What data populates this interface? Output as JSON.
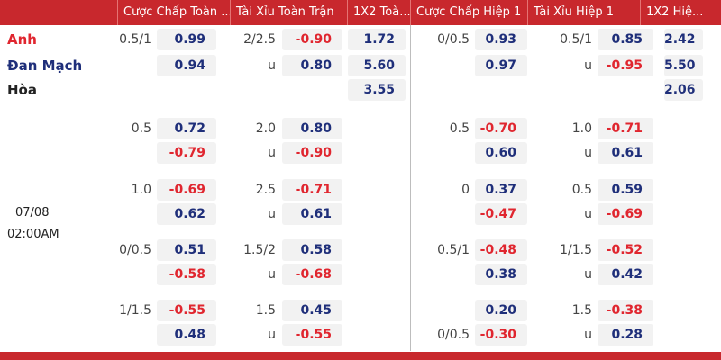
{
  "header": {
    "columns": [
      "Cược Chấp Toàn ...",
      "Tài Xỉu Toàn Trận",
      "1X2 Toà...",
      "Cược Chấp Hiệp 1",
      "Tài Xỉu Hiệp 1",
      "1X2 Hiệ..."
    ]
  },
  "match": {
    "teams": [
      "Anh",
      "Đan Mạch",
      "Hòa"
    ],
    "date": "07/08",
    "time": "02:00AM"
  },
  "rows": [
    {
      "ft_hcap_line": "0.5/1",
      "ft_hcap_odds": "0.99",
      "ft_ou_line": "2/2.5",
      "ft_ou_odds": "-0.90",
      "ft_1x2": "1.72",
      "h_hcap_line": "0/0.5",
      "h_hcap_odds": "0.93",
      "h_ou_line": "0.5/1",
      "h_ou_odds": "0.85",
      "h_1x2": "2.42"
    },
    {
      "ft_hcap_odds": "0.94",
      "ft_ou_line": "u",
      "ft_ou_odds": "0.80",
      "ft_1x2": "5.60",
      "h_hcap_odds": "0.97",
      "h_ou_line": "u",
      "h_ou_odds": "-0.95",
      "h_1x2": "5.50"
    },
    {
      "ft_1x2": "3.55",
      "h_1x2": "2.06"
    },
    {
      "ft_hcap_line": "0.5",
      "ft_hcap_odds": "0.72",
      "ft_ou_line": "2.0",
      "ft_ou_odds": "0.80",
      "h_hcap_line": "0.5",
      "h_hcap_odds": "-0.70",
      "h_ou_line": "1.0",
      "h_ou_odds": "-0.71"
    },
    {
      "ft_hcap_odds": "-0.79",
      "ft_ou_line": "u",
      "ft_ou_odds": "-0.90",
      "h_hcap_odds": "0.60",
      "h_ou_line": "u",
      "h_ou_odds": "0.61"
    },
    {
      "ft_hcap_line": "1.0",
      "ft_hcap_odds": "-0.69",
      "ft_ou_line": "2.5",
      "ft_ou_odds": "-0.71",
      "h_hcap_line": "0",
      "h_hcap_odds": "0.37",
      "h_ou_line": "0.5",
      "h_ou_odds": "0.59"
    },
    {
      "ft_hcap_odds": "0.62",
      "ft_ou_line": "u",
      "ft_ou_odds": "0.61",
      "h_hcap_odds": "-0.47",
      "h_ou_line": "u",
      "h_ou_odds": "-0.69"
    },
    {
      "ft_hcap_line": "0/0.5",
      "ft_hcap_odds": "0.51",
      "ft_ou_line": "1.5/2",
      "ft_ou_odds": "0.58",
      "h_hcap_line": "0.5/1",
      "h_hcap_odds": "-0.48",
      "h_ou_line": "1/1.5",
      "h_ou_odds": "-0.52"
    },
    {
      "ft_hcap_odds": "-0.58",
      "ft_ou_line": "u",
      "ft_ou_odds": "-0.68",
      "h_hcap_odds": "0.38",
      "h_ou_line": "u",
      "h_ou_odds": "0.42"
    },
    {
      "ft_hcap_line": "1/1.5",
      "ft_hcap_odds": "-0.55",
      "ft_ou_line": "1.5",
      "ft_ou_odds": "0.45",
      "h_hcap_odds": "0.20",
      "h_ou_line": "1.5",
      "h_ou_odds": "-0.38"
    },
    {
      "ft_hcap_odds": "0.48",
      "ft_ou_line": "u",
      "ft_ou_odds": "-0.55",
      "h_hcap_line": "0/0.5",
      "h_hcap_odds": "-0.30",
      "h_ou_line": "u",
      "h_ou_odds": "0.28"
    }
  ]
}
